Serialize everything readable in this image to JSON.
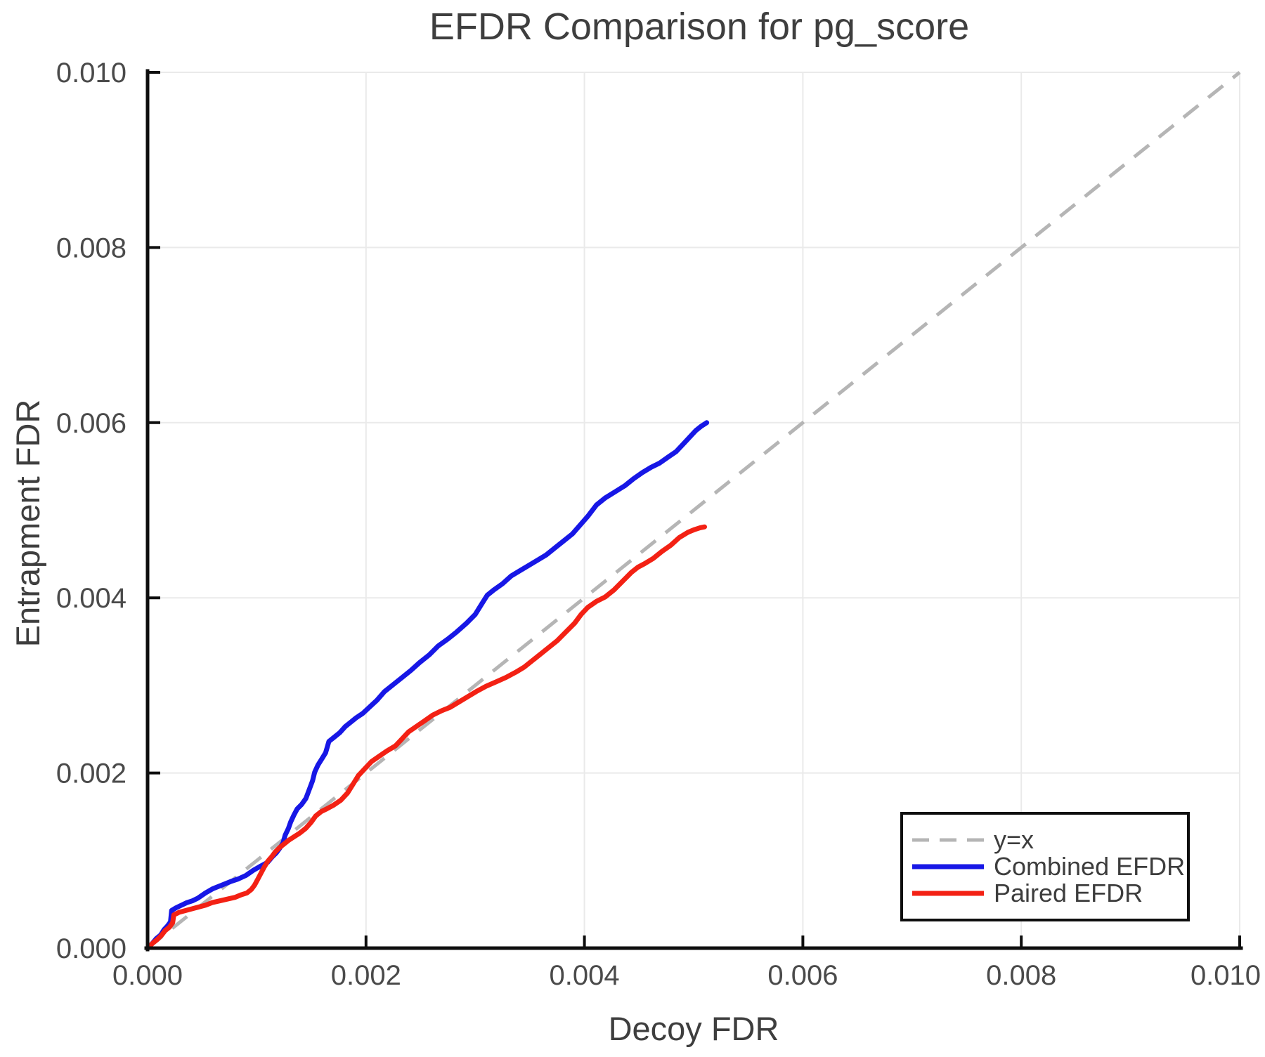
{
  "chart_data": {
    "type": "line",
    "title": "EFDR Comparison for pg_score",
    "xlabel": "Decoy FDR",
    "ylabel": "Entrapment FDR",
    "xlim": [
      0.0,
      0.01
    ],
    "ylim": [
      0.0,
      0.01
    ],
    "x_ticks": [
      "0.000",
      "0.002",
      "0.004",
      "0.006",
      "0.008",
      "0.010"
    ],
    "y_ticks": [
      "0.000",
      "0.002",
      "0.004",
      "0.006",
      "0.008",
      "0.010"
    ],
    "grid": true,
    "legend_position": "lower right",
    "reference_line": {
      "label": "y=x",
      "style": "dashed",
      "color": "#b5b5b5",
      "from": [
        0.0,
        0.0
      ],
      "to": [
        0.01,
        0.01
      ]
    },
    "series": [
      {
        "name": "Combined EFDR",
        "color": "#1717e6",
        "points": [
          [
            0.0,
            0.0
          ],
          [
            4e-05,
            5e-05
          ],
          [
            8e-05,
            0.00011
          ],
          [
            0.00012,
            0.00015
          ],
          [
            0.00015,
            0.00021
          ],
          [
            0.00018,
            0.00025
          ],
          [
            0.00021,
            0.0003
          ],
          [
            0.00022,
            0.00043
          ],
          [
            0.00026,
            0.00046
          ],
          [
            0.00031,
            0.00049
          ],
          [
            0.00036,
            0.00052
          ],
          [
            0.00041,
            0.00054
          ],
          [
            0.00046,
            0.00057
          ],
          [
            0.00053,
            0.00063
          ],
          [
            0.0006,
            0.00068
          ],
          [
            0.00068,
            0.00072
          ],
          [
            0.00076,
            0.00076
          ],
          [
            0.00083,
            0.00079
          ],
          [
            0.0009,
            0.00083
          ],
          [
            0.00097,
            0.00089
          ],
          [
            0.00104,
            0.00094
          ],
          [
            0.0011,
            0.00098
          ],
          [
            0.00114,
            0.00104
          ],
          [
            0.00118,
            0.00109
          ],
          [
            0.00121,
            0.00114
          ],
          [
            0.00124,
            0.0012
          ],
          [
            0.00126,
            0.00129
          ],
          [
            0.00129,
            0.00137
          ],
          [
            0.00131,
            0.00144
          ],
          [
            0.00134,
            0.00152
          ],
          [
            0.00137,
            0.00159
          ],
          [
            0.00141,
            0.00164
          ],
          [
            0.00145,
            0.00171
          ],
          [
            0.00148,
            0.00181
          ],
          [
            0.00151,
            0.00191
          ],
          [
            0.00153,
            0.00201
          ],
          [
            0.00156,
            0.00209
          ],
          [
            0.00159,
            0.00215
          ],
          [
            0.00163,
            0.00223
          ],
          [
            0.00166,
            0.00236
          ],
          [
            0.00171,
            0.00241
          ],
          [
            0.00176,
            0.00246
          ],
          [
            0.00181,
            0.00253
          ],
          [
            0.00186,
            0.00258
          ],
          [
            0.00191,
            0.00263
          ],
          [
            0.00197,
            0.00268
          ],
          [
            0.00203,
            0.00275
          ],
          [
            0.0021,
            0.00283
          ],
          [
            0.00217,
            0.00293
          ],
          [
            0.00225,
            0.00301
          ],
          [
            0.00233,
            0.00309
          ],
          [
            0.00241,
            0.00317
          ],
          [
            0.00249,
            0.00326
          ],
          [
            0.00258,
            0.00335
          ],
          [
            0.00266,
            0.00345
          ],
          [
            0.00275,
            0.00353
          ],
          [
            0.00283,
            0.00361
          ],
          [
            0.00292,
            0.00371
          ],
          [
            0.003,
            0.00381
          ],
          [
            0.00306,
            0.00393
          ],
          [
            0.00311,
            0.00403
          ],
          [
            0.00317,
            0.00409
          ],
          [
            0.00325,
            0.00416
          ],
          [
            0.00333,
            0.00425
          ],
          [
            0.00341,
            0.00431
          ],
          [
            0.00349,
            0.00437
          ],
          [
            0.00357,
            0.00443
          ],
          [
            0.00365,
            0.00449
          ],
          [
            0.00373,
            0.00457
          ],
          [
            0.00381,
            0.00465
          ],
          [
            0.00389,
            0.00473
          ],
          [
            0.00396,
            0.00483
          ],
          [
            0.00403,
            0.00493
          ],
          [
            0.00411,
            0.00506
          ],
          [
            0.00419,
            0.00514
          ],
          [
            0.00428,
            0.00521
          ],
          [
            0.00437,
            0.00528
          ],
          [
            0.00445,
            0.00536
          ],
          [
            0.00453,
            0.00543
          ],
          [
            0.00461,
            0.00549
          ],
          [
            0.00469,
            0.00554
          ],
          [
            0.00477,
            0.00561
          ],
          [
            0.00484,
            0.00567
          ],
          [
            0.0049,
            0.00575
          ],
          [
            0.00496,
            0.00583
          ],
          [
            0.00502,
            0.00591
          ],
          [
            0.00507,
            0.00596
          ],
          [
            0.00512,
            0.006
          ]
        ]
      },
      {
        "name": "Paired EFDR",
        "color": "#f32114",
        "points": [
          [
            0.0,
            0.0
          ],
          [
            5e-05,
            6e-05
          ],
          [
            9e-05,
            0.0001
          ],
          [
            0.00013,
            0.00015
          ],
          [
            0.00016,
            0.0002
          ],
          [
            0.0002,
            0.00024
          ],
          [
            0.00023,
            0.00029
          ],
          [
            0.00024,
            0.00038
          ],
          [
            0.00029,
            0.00041
          ],
          [
            0.00035,
            0.00043
          ],
          [
            0.00041,
            0.00045
          ],
          [
            0.00047,
            0.00047
          ],
          [
            0.00053,
            0.00049
          ],
          [
            0.00059,
            0.00052
          ],
          [
            0.00066,
            0.00054
          ],
          [
            0.00073,
            0.00056
          ],
          [
            0.0008,
            0.00058
          ],
          [
            0.00086,
            0.00061
          ],
          [
            0.00091,
            0.00063
          ],
          [
            0.00095,
            0.00067
          ],
          [
            0.00098,
            0.00072
          ],
          [
            0.00101,
            0.00079
          ],
          [
            0.00104,
            0.00086
          ],
          [
            0.00107,
            0.00093
          ],
          [
            0.0011,
            0.00099
          ],
          [
            0.00114,
            0.00105
          ],
          [
            0.00117,
            0.0011
          ],
          [
            0.00121,
            0.00115
          ],
          [
            0.00125,
            0.00119
          ],
          [
            0.00129,
            0.00123
          ],
          [
            0.00134,
            0.00127
          ],
          [
            0.00139,
            0.00131
          ],
          [
            0.00145,
            0.00137
          ],
          [
            0.0015,
            0.00144
          ],
          [
            0.00154,
            0.00151
          ],
          [
            0.00159,
            0.00156
          ],
          [
            0.00164,
            0.00159
          ],
          [
            0.0017,
            0.00163
          ],
          [
            0.00177,
            0.00169
          ],
          [
            0.00183,
            0.00177
          ],
          [
            0.00188,
            0.00187
          ],
          [
            0.00193,
            0.00197
          ],
          [
            0.00199,
            0.00205
          ],
          [
            0.00205,
            0.00213
          ],
          [
            0.00212,
            0.00219
          ],
          [
            0.00219,
            0.00225
          ],
          [
            0.00227,
            0.00231
          ],
          [
            0.00233,
            0.00239
          ],
          [
            0.00239,
            0.00247
          ],
          [
            0.00246,
            0.00253
          ],
          [
            0.00253,
            0.00259
          ],
          [
            0.00261,
            0.00266
          ],
          [
            0.00269,
            0.00271
          ],
          [
            0.00277,
            0.00275
          ],
          [
            0.00285,
            0.00281
          ],
          [
            0.00293,
            0.00287
          ],
          [
            0.00301,
            0.00293
          ],
          [
            0.0031,
            0.00299
          ],
          [
            0.00319,
            0.00304
          ],
          [
            0.00328,
            0.00309
          ],
          [
            0.00337,
            0.00315
          ],
          [
            0.00345,
            0.00321
          ],
          [
            0.00353,
            0.00329
          ],
          [
            0.00361,
            0.00337
          ],
          [
            0.00367,
            0.00343
          ],
          [
            0.00375,
            0.00351
          ],
          [
            0.00383,
            0.00361
          ],
          [
            0.00391,
            0.00371
          ],
          [
            0.00397,
            0.00381
          ],
          [
            0.00403,
            0.00389
          ],
          [
            0.00411,
            0.00396
          ],
          [
            0.00419,
            0.00401
          ],
          [
            0.00427,
            0.00409
          ],
          [
            0.00435,
            0.00419
          ],
          [
            0.00443,
            0.00429
          ],
          [
            0.00449,
            0.00435
          ],
          [
            0.00455,
            0.00439
          ],
          [
            0.00463,
            0.00445
          ],
          [
            0.00471,
            0.00453
          ],
          [
            0.00479,
            0.0046
          ],
          [
            0.00487,
            0.00469
          ],
          [
            0.00495,
            0.00475
          ],
          [
            0.00501,
            0.00478
          ],
          [
            0.00506,
            0.0048
          ],
          [
            0.0051,
            0.00481
          ]
        ]
      }
    ]
  }
}
